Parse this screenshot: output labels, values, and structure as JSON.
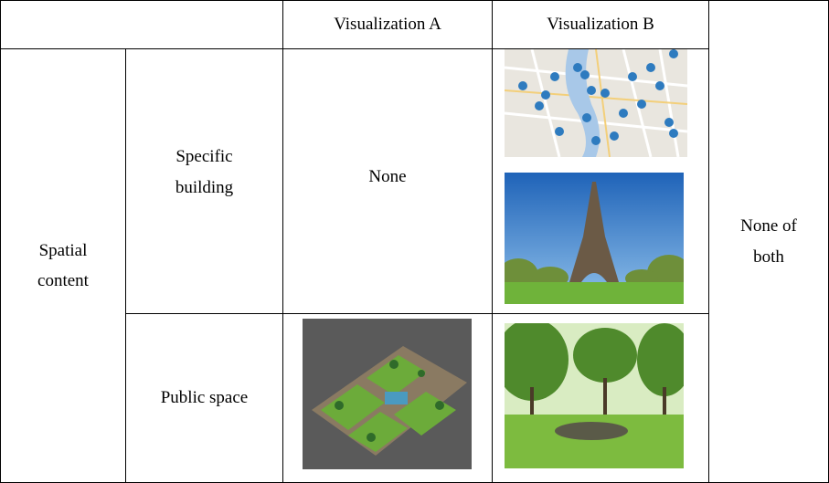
{
  "table": {
    "header": {
      "col_a": "Visualization A",
      "col_b": "Visualization B"
    },
    "row_group": "Spatial content",
    "rows": [
      {
        "label": "Specific building",
        "col_a": "None"
      },
      {
        "label": "Public space"
      }
    ],
    "last_column": "None of both"
  }
}
